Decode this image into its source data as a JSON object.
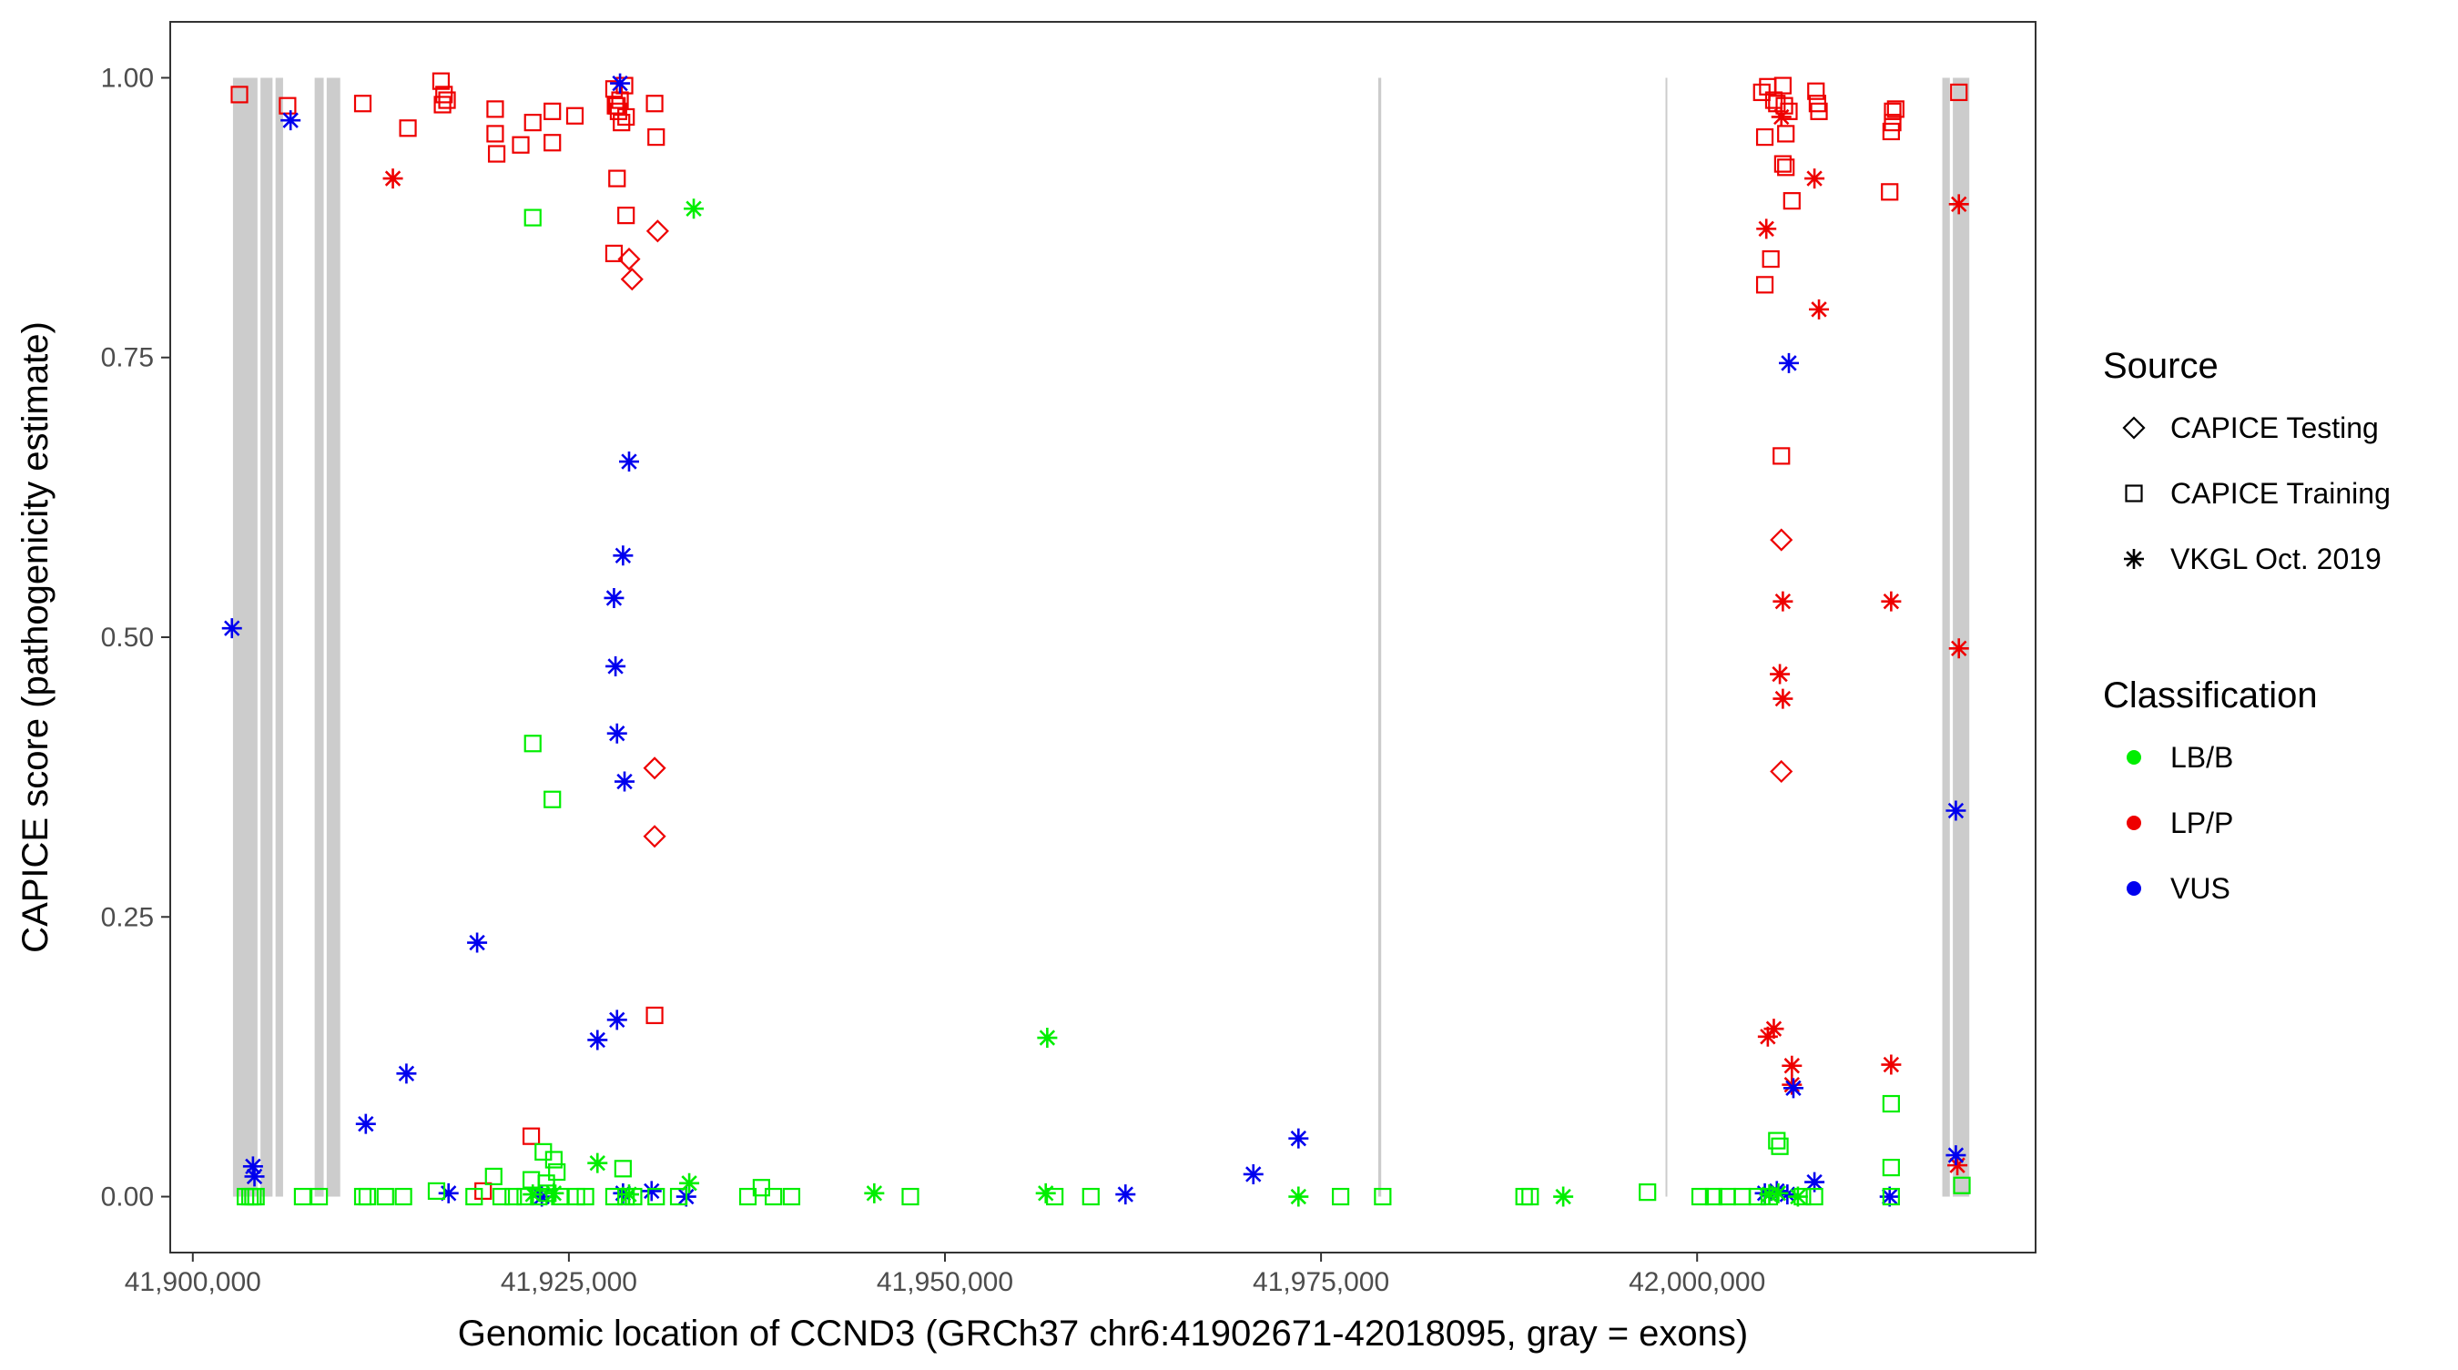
{
  "chart_data": {
    "type": "scatter",
    "title": "",
    "xlabel": "Genomic location of CCND3 (GRCh37 chr6:41902671-42018095, gray = exons)",
    "ylabel": "CAPICE score (pathogenicity estimate)",
    "xlim": [
      41898500,
      42022500
    ],
    "ylim": [
      -0.05,
      1.05
    ],
    "x_ticks": [
      41900000,
      41925000,
      41950000,
      41975000,
      42000000
    ],
    "x_tick_labels": [
      "41,900,000",
      "41,925,000",
      "41,950,000",
      "41,975,000",
      "42,000,000"
    ],
    "y_ticks": [
      0,
      0.25,
      0.5,
      0.75,
      1
    ],
    "y_tick_labels": [
      "0.00",
      "0.25",
      "0.50",
      "0.75",
      "1.00"
    ],
    "grid": false,
    "legend_position": "right",
    "exons": [
      [
        41902671,
        41904300
      ],
      [
        41904500,
        41905300
      ],
      [
        41905500,
        41906000
      ],
      [
        41908100,
        41908700
      ],
      [
        41908900,
        41909800
      ],
      [
        41978800,
        41979000
      ],
      [
        41997900,
        41998000
      ],
      [
        42016300,
        42016800
      ],
      [
        42017000,
        42018095
      ]
    ],
    "exon_color": "#cccccc",
    "legends": [
      {
        "title": "Source",
        "entries": [
          {
            "label": "CAPICE Testing",
            "shape": "diamond"
          },
          {
            "label": "CAPICE Training",
            "shape": "square"
          },
          {
            "label": "VKGL Oct. 2019",
            "shape": "asterisk"
          }
        ]
      },
      {
        "title": "Classification",
        "entries": [
          {
            "label": "LB/B",
            "color": "#00ee00"
          },
          {
            "label": "LP/P",
            "color": "#ee0000"
          },
          {
            "label": "VUS",
            "color": "#0000ee"
          }
        ]
      }
    ],
    "colors": {
      "LB/B": "#00ee00",
      "LP/P": "#ee0000",
      "VUS": "#0000ee"
    },
    "series": [
      {
        "source": "CAPICE Training",
        "classification": "LP/P",
        "shape": "square",
        "points": [
          [
            41903100,
            0.985
          ],
          [
            41906300,
            0.975
          ],
          [
            41911300,
            0.977
          ],
          [
            41914300,
            0.955
          ],
          [
            41916500,
            0.997
          ],
          [
            41916600,
            0.976
          ],
          [
            41916700,
            0.985
          ],
          [
            41916900,
            0.98
          ],
          [
            41920100,
            0.972
          ],
          [
            41920100,
            0.95
          ],
          [
            41920200,
            0.932
          ],
          [
            41921800,
            0.94
          ],
          [
            41922600,
            0.96
          ],
          [
            41923900,
            0.97
          ],
          [
            41923900,
            0.942
          ],
          [
            41925400,
            0.966
          ],
          [
            41928000,
            0.99
          ],
          [
            41928100,
            0.975
          ],
          [
            41928200,
            0.975
          ],
          [
            41928300,
            0.97
          ],
          [
            41928400,
            0.98
          ],
          [
            41928500,
            0.96
          ],
          [
            41928700,
            0.993
          ],
          [
            41928800,
            0.965
          ],
          [
            41930700,
            0.977
          ],
          [
            41930800,
            0.947
          ],
          [
            41928200,
            0.91
          ],
          [
            41928800,
            0.877
          ],
          [
            41928000,
            0.843
          ],
          [
            41930700,
            0.162
          ],
          [
            41922500,
            0.054
          ],
          [
            41919300,
            0.005
          ],
          [
            42004300,
            0.987
          ],
          [
            42004700,
            0.992
          ],
          [
            42005100,
            0.98
          ],
          [
            42005300,
            0.977
          ],
          [
            42005700,
            0.993
          ],
          [
            42005800,
            0.975
          ],
          [
            42006100,
            0.97
          ],
          [
            42004500,
            0.947
          ],
          [
            42005900,
            0.95
          ],
          [
            42005900,
            0.92
          ],
          [
            42005700,
            0.923
          ],
          [
            42006300,
            0.89
          ],
          [
            42007900,
            0.988
          ],
          [
            42008000,
            0.977
          ],
          [
            42008100,
            0.97
          ],
          [
            42004900,
            0.838
          ],
          [
            42004500,
            0.815
          ],
          [
            42005600,
            0.662
          ],
          [
            42013000,
            0.97
          ],
          [
            42013200,
            0.972
          ],
          [
            42013000,
            0.96
          ],
          [
            42012900,
            0.952
          ],
          [
            42012800,
            0.898
          ],
          [
            42017400,
            0.987
          ]
        ]
      },
      {
        "source": "CAPICE Testing",
        "classification": "LP/P",
        "shape": "diamond",
        "points": [
          [
            41930900,
            0.863
          ],
          [
            41929000,
            0.838
          ],
          [
            41929200,
            0.82
          ],
          [
            41930700,
            0.383
          ],
          [
            41930700,
            0.322
          ],
          [
            42005600,
            0.587
          ],
          [
            42005600,
            0.38
          ]
        ]
      },
      {
        "source": "VKGL Oct. 2019",
        "classification": "LP/P",
        "shape": "asterisk",
        "points": [
          [
            41913300,
            0.91
          ],
          [
            42007800,
            0.91
          ],
          [
            42005600,
            0.965
          ],
          [
            42004600,
            0.865
          ],
          [
            42008100,
            0.793
          ],
          [
            42005700,
            0.532
          ],
          [
            42005500,
            0.467
          ],
          [
            42005700,
            0.445
          ],
          [
            42005100,
            0.15
          ],
          [
            42004700,
            0.143
          ],
          [
            42006300,
            0.117
          ],
          [
            42006300,
            0.1
          ],
          [
            42012900,
            0.532
          ],
          [
            42012900,
            0.118
          ],
          [
            42017400,
            0.887
          ],
          [
            42017400,
            0.49
          ],
          [
            42017300,
            0.028
          ]
        ]
      },
      {
        "source": "VKGL Oct. 2019",
        "classification": "VUS",
        "shape": "asterisk",
        "points": [
          [
            41906500,
            0.962
          ],
          [
            41902600,
            0.508
          ],
          [
            41928400,
            0.995
          ],
          [
            41929000,
            0.657
          ],
          [
            41928600,
            0.573
          ],
          [
            41928000,
            0.535
          ],
          [
            41928100,
            0.474
          ],
          [
            41928200,
            0.414
          ],
          [
            41928700,
            0.371
          ],
          [
            41918900,
            0.227
          ],
          [
            41926900,
            0.14
          ],
          [
            41928200,
            0.158
          ],
          [
            41914200,
            0.11
          ],
          [
            41911500,
            0.065
          ],
          [
            41904000,
            0.027
          ],
          [
            41904100,
            0.018
          ],
          [
            41917000,
            0.003
          ],
          [
            41923200,
            0.0
          ],
          [
            41928600,
            0.003
          ],
          [
            41930500,
            0.005
          ],
          [
            41932800,
            0.0
          ],
          [
            41962000,
            0.002
          ],
          [
            41970500,
            0.02
          ],
          [
            41973500,
            0.052
          ],
          [
            42006100,
            0.745
          ],
          [
            42006400,
            0.097
          ],
          [
            42004500,
            0.003
          ],
          [
            42005300,
            0.005
          ],
          [
            42006000,
            0.002
          ],
          [
            42007800,
            0.013
          ],
          [
            42012800,
            0.0
          ],
          [
            42017200,
            0.345
          ],
          [
            42017200,
            0.037
          ]
        ]
      },
      {
        "source": "VKGL Oct. 2019",
        "classification": "LB/B",
        "shape": "asterisk",
        "points": [
          [
            41933300,
            0.883
          ],
          [
            41956800,
            0.142
          ],
          [
            41922600,
            0.002
          ],
          [
            41924000,
            0.003
          ],
          [
            41926900,
            0.03
          ],
          [
            41929000,
            0.002
          ],
          [
            41933000,
            0.012
          ],
          [
            41945300,
            0.003
          ],
          [
            41956700,
            0.003
          ],
          [
            41973500,
            0.0
          ],
          [
            41991100,
            0.0
          ],
          [
            42004800,
            0.002
          ],
          [
            42005400,
            0.003
          ],
          [
            42006700,
            0.0
          ]
        ]
      },
      {
        "source": "CAPICE Training",
        "classification": "LB/B",
        "shape": "square",
        "points": [
          [
            41922600,
            0.875
          ],
          [
            41922600,
            0.405
          ],
          [
            41923900,
            0.355
          ],
          [
            41923300,
            0.04
          ],
          [
            41924000,
            0.033
          ],
          [
            41924200,
            0.022
          ],
          [
            41922500,
            0.015
          ],
          [
            41920000,
            0.018
          ],
          [
            41928600,
            0.025
          ],
          [
            41923500,
            0.012
          ],
          [
            41925500,
            0.0
          ],
          [
            41903500,
            0.0
          ],
          [
            41903800,
            0.0
          ],
          [
            41904000,
            0.0
          ],
          [
            41904200,
            0.0
          ],
          [
            41907300,
            0.0
          ],
          [
            41908400,
            0.0
          ],
          [
            41911300,
            0.0
          ],
          [
            41911600,
            0.0
          ],
          [
            41912800,
            0.0
          ],
          [
            41914000,
            0.0
          ],
          [
            41916200,
            0.005
          ],
          [
            41918700,
            0.0
          ],
          [
            41920500,
            0.0
          ],
          [
            41921300,
            0.0
          ],
          [
            41922100,
            0.0
          ],
          [
            41923000,
            0.0
          ],
          [
            41923600,
            0.003
          ],
          [
            41924400,
            0.0
          ],
          [
            41926100,
            0.0
          ],
          [
            41928000,
            0.0
          ],
          [
            41928800,
            0.0
          ],
          [
            41929300,
            0.0
          ],
          [
            41930800,
            0.0
          ],
          [
            41932300,
            0.0
          ],
          [
            41936900,
            0.0
          ],
          [
            41937800,
            0.008
          ],
          [
            41938600,
            0.0
          ],
          [
            41939800,
            0.0
          ],
          [
            41947700,
            0.0
          ],
          [
            41957300,
            0.0
          ],
          [
            41959700,
            0.0
          ],
          [
            41976300,
            0.0
          ],
          [
            41979100,
            0.0
          ],
          [
            41988500,
            0.0
          ],
          [
            41988900,
            0.0
          ],
          [
            41996700,
            0.004
          ],
          [
            42000200,
            0.0
          ],
          [
            42001100,
            0.0
          ],
          [
            42002000,
            0.0
          ],
          [
            42003000,
            0.0
          ],
          [
            42004000,
            0.0
          ],
          [
            42004800,
            0.0
          ],
          [
            42005300,
            0.05
          ],
          [
            42005500,
            0.045
          ],
          [
            42007000,
            0.0
          ],
          [
            42007800,
            0.0
          ],
          [
            42012900,
            0.083
          ],
          [
            42012900,
            0.026
          ],
          [
            42012900,
            0.0
          ],
          [
            42017600,
            0.01
          ]
        ]
      }
    ]
  }
}
